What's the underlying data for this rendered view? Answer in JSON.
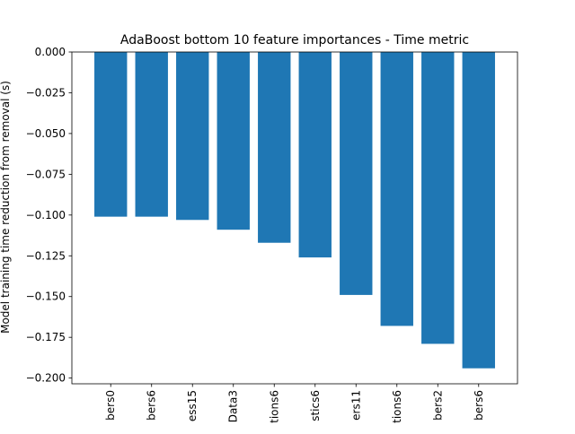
{
  "chart_data": {
    "type": "bar",
    "title": "AdaBoost bottom 10 feature importances - Time metric",
    "xlabel": "",
    "ylabel": "Model training time reduction from removal (s)",
    "categories": [
      "bers0",
      "bers6",
      "ess15",
      "Data3",
      "tions6",
      "stics6",
      "ers11",
      "tions6",
      "bers2",
      "bers6"
    ],
    "values": [
      -0.101,
      -0.101,
      -0.103,
      -0.109,
      -0.117,
      -0.126,
      -0.149,
      -0.168,
      -0.179,
      -0.194
    ],
    "ylim": [
      -0.2035,
      0.0
    ],
    "yticks": [
      0.0,
      -0.025,
      -0.05,
      -0.075,
      -0.1,
      -0.125,
      -0.15,
      -0.175,
      -0.2
    ],
    "ytick_labels": [
      "0.000",
      "−0.025",
      "−0.050",
      "−0.075",
      "−0.100",
      "−0.125",
      "−0.150",
      "−0.175",
      "−0.200"
    ],
    "bar_color": "#1f77b4",
    "grid": false,
    "legend": "none"
  }
}
